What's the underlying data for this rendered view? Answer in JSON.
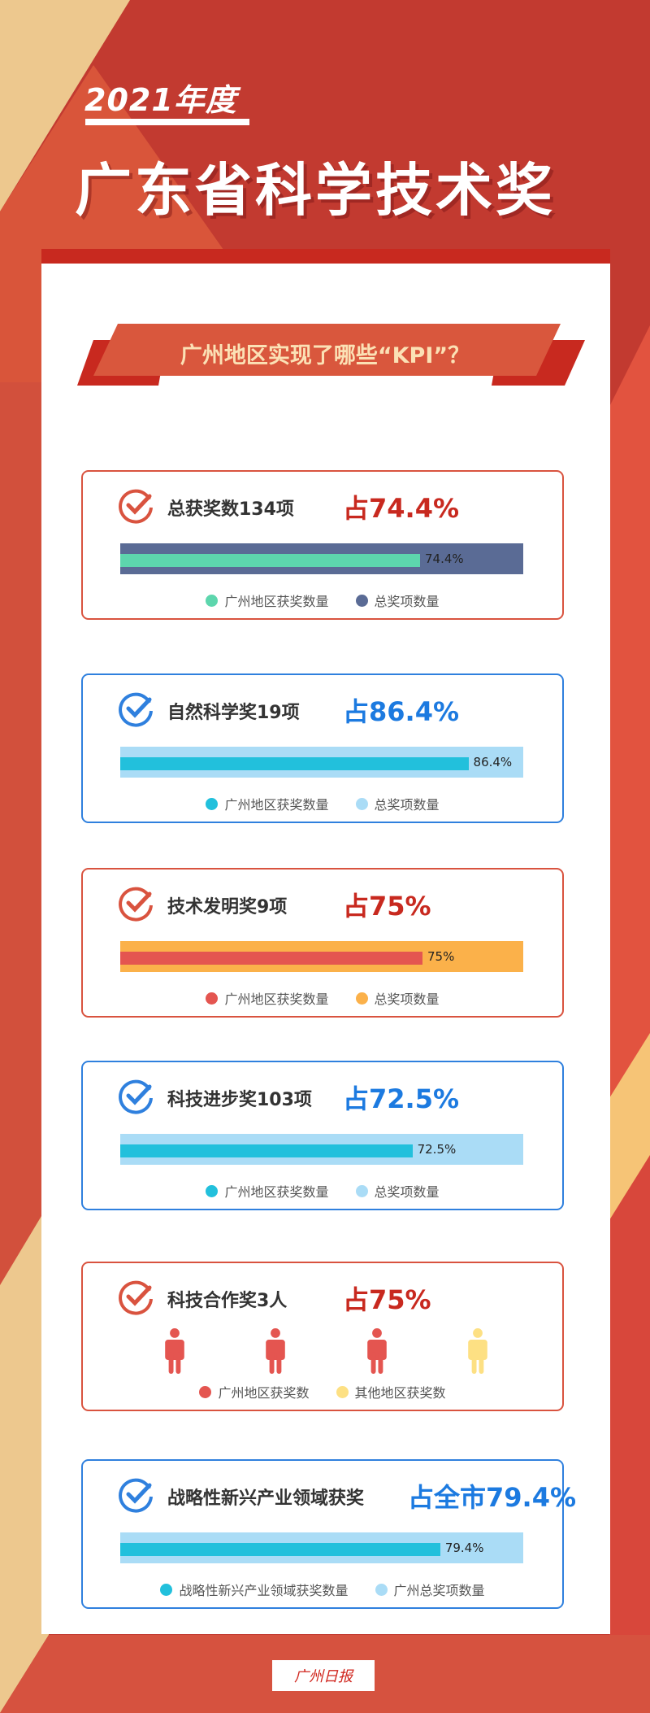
{
  "header": {
    "year": "2021年度",
    "title": "广东省科学技术奖"
  },
  "banner": {
    "text": "广州地区实现了哪些“KPI”？"
  },
  "colors": {
    "red": "#c8291f",
    "blue": "#1c7ae0"
  },
  "cards": [
    {
      "title": "总获奖数134项",
      "percent_text": "占74.4%",
      "value": 74.4,
      "bar_label": "74.4%",
      "outer_color": "#5a6b95",
      "inner_color": "#5dd6ad",
      "legend": [
        "广州地区获奖数量",
        "总奖项数量"
      ]
    },
    {
      "title": "自然科学奖19项",
      "percent_text": "占86.4%",
      "value": 86.4,
      "bar_label": "86.4%",
      "outer_color": "#aadcf6",
      "inner_color": "#22c0dc",
      "legend": [
        "广州地区获奖数量",
        "总奖项数量"
      ]
    },
    {
      "title": "技术发明奖9项",
      "percent_text": "占75%",
      "value": 75,
      "bar_label": "75%",
      "outer_color": "#fbb14a",
      "inner_color": "#e45550",
      "legend": [
        "广州地区获奖数量",
        "总奖项数量"
      ]
    },
    {
      "title": "科技进步奖103项",
      "percent_text": "占72.5%",
      "value": 72.5,
      "bar_label": "72.5%",
      "outer_color": "#aadcf6",
      "inner_color": "#22c0dc",
      "legend": [
        "广州地区获奖数量",
        "总奖项数量"
      ]
    },
    {
      "title": "科技合作奖3人",
      "percent_text": "占75%",
      "guangzhou_count": 3,
      "other_count": 1,
      "colors": [
        "#e45550",
        "#fde083"
      ],
      "legend": [
        "广州地区获奖数",
        "其他地区获奖数"
      ]
    },
    {
      "title": "战略性新兴产业领域获奖",
      "percent_text": "占全市79.4%",
      "value": 79.4,
      "bar_label": "79.4%",
      "outer_color": "#aadcf6",
      "inner_color": "#22c0dc",
      "legend": [
        "战略性新兴产业领域获奖数量",
        "广州总奖项数量"
      ]
    }
  ],
  "footer": {
    "logo": "广州日报"
  }
}
